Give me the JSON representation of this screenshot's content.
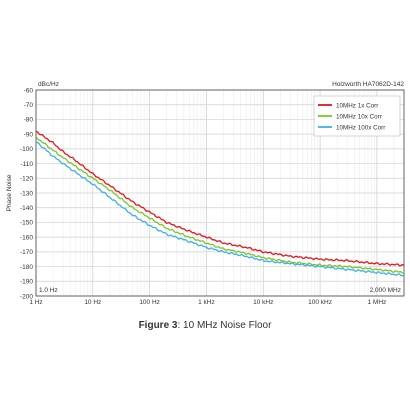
{
  "chart_data": {
    "type": "line",
    "yunit": "dBc/Hz",
    "ylabel": "Phase Noise",
    "device": "Holzworth HA7062D-142",
    "xscale": "log",
    "xlim": [
      1,
      3000000
    ],
    "ylim": [
      -200,
      -60
    ],
    "yticks": [
      -60,
      -70,
      -80,
      -90,
      -100,
      -110,
      -120,
      -130,
      -140,
      -150,
      -160,
      -170,
      -180,
      -190,
      -200
    ],
    "xticks": [
      {
        "value": 1,
        "label": "1 Hz"
      },
      {
        "value": 10,
        "label": "10 Hz"
      },
      {
        "value": 100,
        "label": "100 Hz"
      },
      {
        "value": 1000,
        "label": "1 kHz"
      },
      {
        "value": 10000,
        "label": "10 kHz"
      },
      {
        "value": 100000,
        "label": "100 kHz"
      },
      {
        "value": 1000000,
        "label": "1 MHz"
      }
    ],
    "corner_left": "1.0 Hz",
    "corner_right": "2,000 MHz",
    "grid": true,
    "legend_position": "top-right",
    "series": [
      {
        "name": "10MHz 1x Corr",
        "color": "#e8141c",
        "x": [
          1,
          2,
          3,
          5,
          10,
          20,
          50,
          100,
          200,
          500,
          1000,
          2000,
          5000,
          10000,
          30000,
          100000,
          300000,
          1000000,
          3000000
        ],
        "y": [
          -88,
          -96,
          -102,
          -108,
          -117,
          -125,
          -136,
          -143,
          -150,
          -156,
          -160,
          -164,
          -167,
          -170,
          -173,
          -175,
          -176,
          -178,
          -179
        ]
      },
      {
        "name": "10MHz 10x Corr",
        "color": "#7cc62a",
        "x": [
          1,
          2,
          3,
          5,
          10,
          20,
          50,
          100,
          200,
          500,
          1000,
          2000,
          5000,
          10000,
          30000,
          100000,
          300000,
          1000000,
          3000000
        ],
        "y": [
          -92,
          -101,
          -106,
          -112,
          -120,
          -128,
          -140,
          -147,
          -154,
          -160,
          -164,
          -168,
          -171,
          -174,
          -177,
          -179,
          -180,
          -182,
          -184
        ]
      },
      {
        "name": "10MHz 100x Corr",
        "color": "#3fb0e8",
        "x": [
          1,
          2,
          3,
          5,
          10,
          20,
          50,
          100,
          200,
          500,
          1000,
          2000,
          5000,
          10000,
          30000,
          100000,
          300000,
          1000000,
          3000000
        ],
        "y": [
          -95,
          -105,
          -110,
          -116,
          -124,
          -133,
          -145,
          -152,
          -158,
          -163,
          -167,
          -170,
          -173,
          -176,
          -178,
          -180,
          -182,
          -184,
          -186
        ]
      }
    ]
  },
  "caption": {
    "label": "Figure 3",
    "text": ": 10 MHz Noise Floor"
  },
  "style": {
    "grid_color": "#d0d0d0",
    "axis_color": "#444444",
    "text_color": "#333333"
  }
}
